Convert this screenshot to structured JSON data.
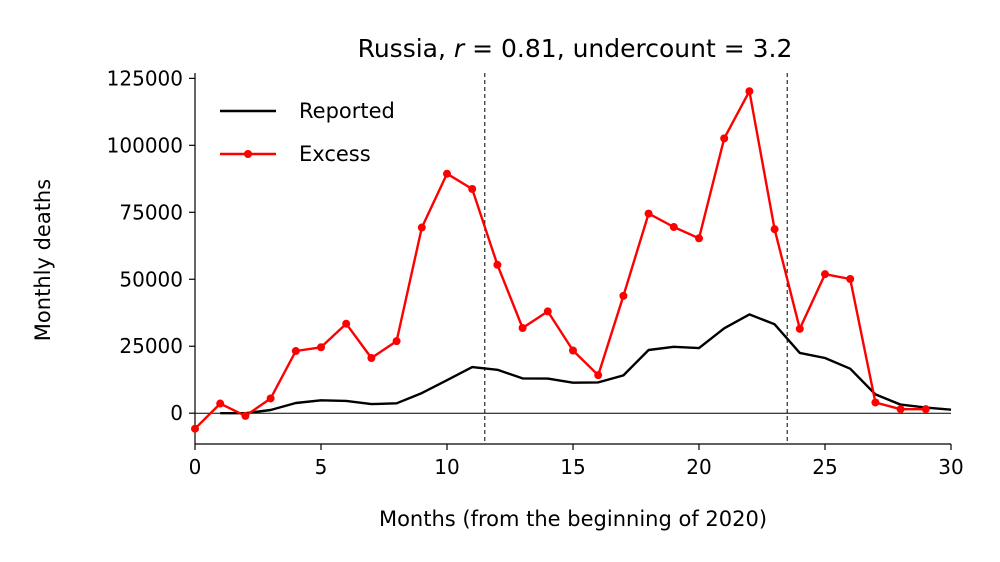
{
  "chart_data": {
    "type": "line",
    "title_parts": {
      "prefix": "Russia, ",
      "r_symbol": "r",
      "r_value": " = 0.81, undercount = 3.2"
    },
    "xlabel": "Months (from the beginning of 2020)",
    "ylabel": "Monthly deaths",
    "xlim": [
      0,
      30
    ],
    "ylim": [
      -11500,
      127000
    ],
    "x_ticks": [
      0,
      5,
      10,
      15,
      20,
      25,
      30
    ],
    "y_ticks": [
      0,
      25000,
      50000,
      75000,
      100000,
      125000
    ],
    "legend_position": "upper-left",
    "zero_line": true,
    "vertical_dashed_lines": [
      11.5,
      23.5
    ],
    "series": [
      {
        "name": "Reported",
        "color": "#000000",
        "markers": false,
        "x": [
          1,
          2,
          3,
          4,
          5,
          6,
          7,
          8,
          9,
          10,
          11,
          12,
          13,
          14,
          15,
          16,
          17,
          18,
          19,
          20,
          21,
          22,
          23,
          24,
          25,
          26,
          27,
          28,
          29,
          30
        ],
        "values": [
          0,
          0,
          1200,
          3800,
          4800,
          4600,
          3400,
          3700,
          7500,
          12300,
          17200,
          16200,
          13000,
          12900,
          11400,
          11500,
          14100,
          23600,
          24800,
          24300,
          31700,
          36900,
          33200,
          22500,
          20600,
          16600,
          7000,
          3200,
          2100,
          1300
        ]
      },
      {
        "name": "Excess",
        "color": "#ff0000",
        "markers": true,
        "x": [
          0,
          1,
          2,
          3,
          4,
          5,
          6,
          7,
          8,
          9,
          10,
          11,
          12,
          13,
          14,
          15,
          16,
          17,
          18,
          19,
          20,
          21,
          22,
          23,
          24,
          25,
          26,
          27,
          28,
          29
        ],
        "values": [
          -5800,
          3600,
          -1000,
          5500,
          23200,
          24600,
          33400,
          20600,
          26900,
          69300,
          89400,
          83700,
          55400,
          31800,
          38000,
          23400,
          14200,
          43800,
          74500,
          69500,
          65300,
          102600,
          120200,
          68700,
          31500,
          51900,
          50100,
          4000,
          1500,
          1500
        ]
      }
    ]
  }
}
